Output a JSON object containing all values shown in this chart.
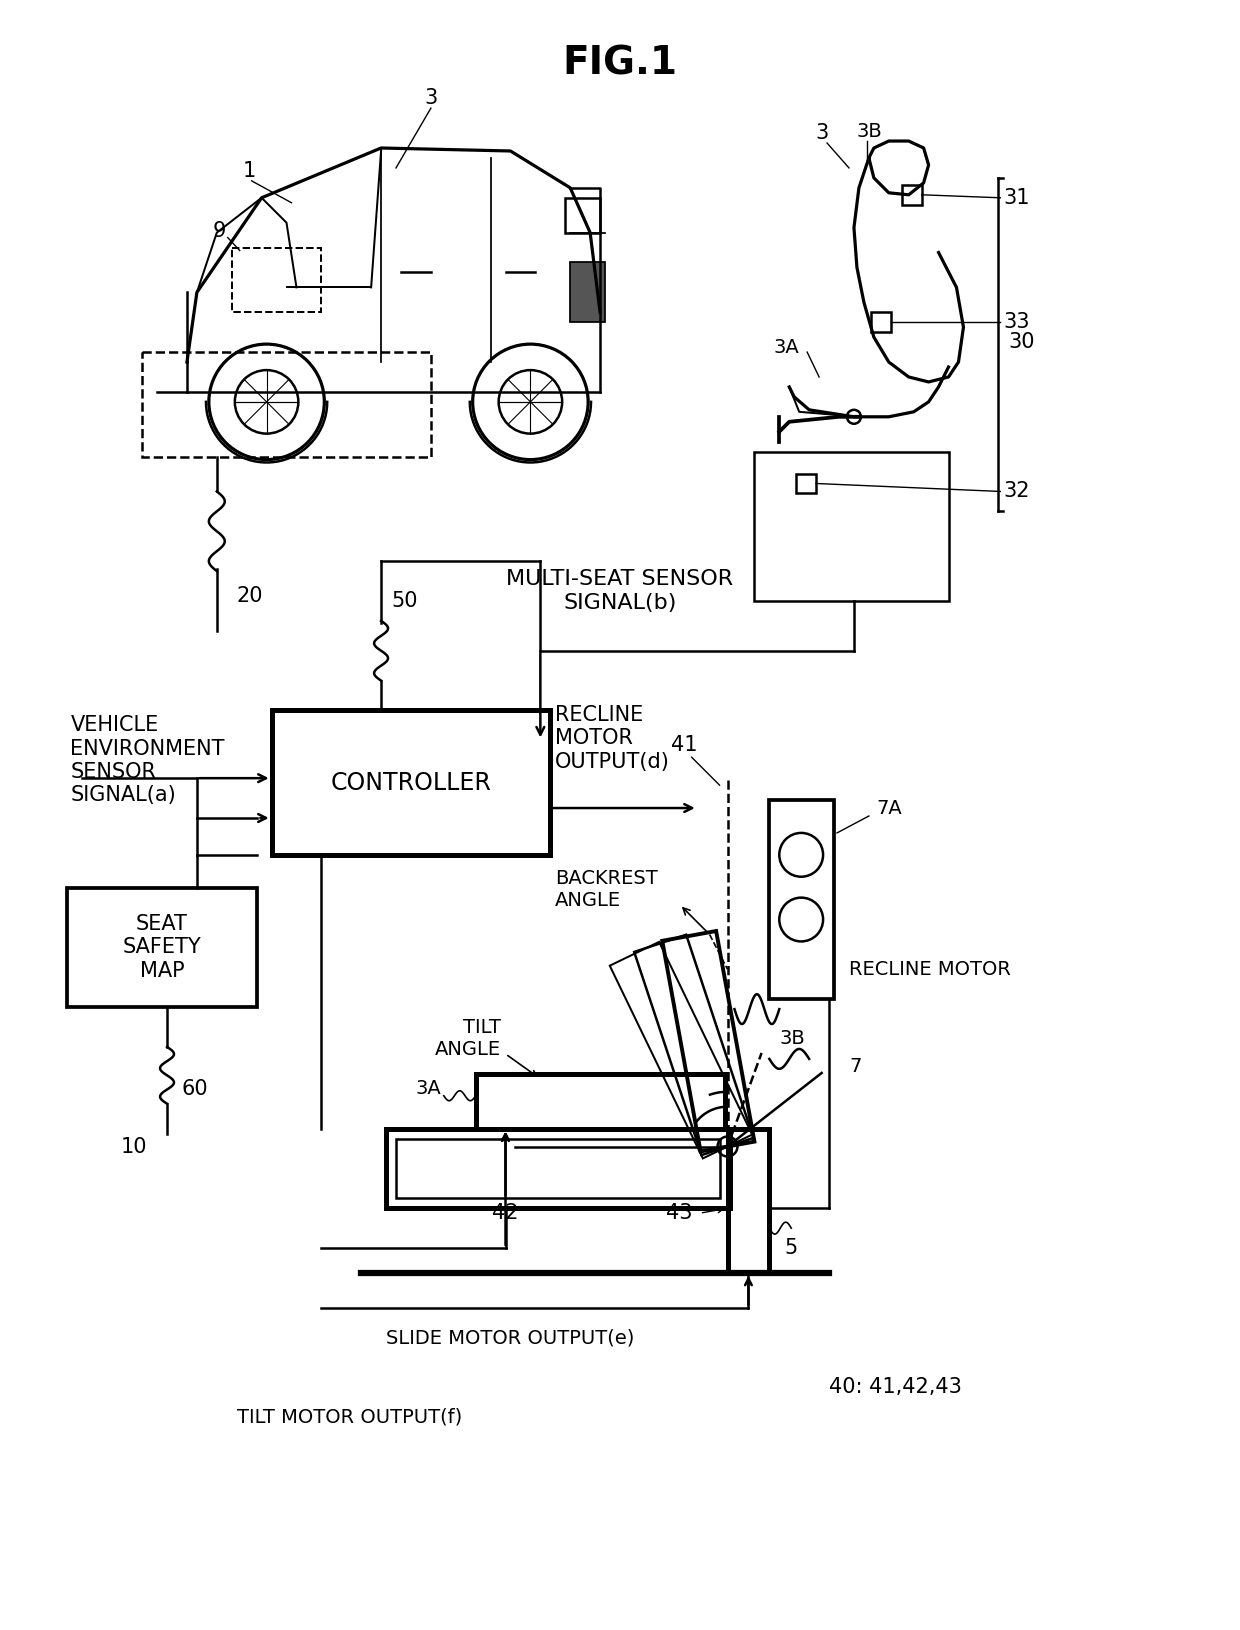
{
  "bg_color": "#ffffff",
  "line_color": "#000000",
  "fig_title": "FIG.1",
  "labels": {
    "1": "1",
    "3": "3",
    "9": "9",
    "20": "20",
    "30": "30",
    "31": "31",
    "32": "32",
    "33": "33",
    "3A_top": "3A",
    "3B_top": "3B",
    "50": "50",
    "41": "41",
    "42": "42",
    "43": "43",
    "60": "60",
    "10": "10",
    "5": "5",
    "7": "7",
    "7A": "7A",
    "3B_bot": "3B",
    "3A_bot": "3A",
    "vehicle_env": "VEHICLE\nENVIRONMENT\nSENSOR\nSIGNAL(a)",
    "multi_seat": "MULTI-SEAT SENSOR\nSIGNAL(b)",
    "controller": "CONTROLLER",
    "seat_safety": "SEAT\nSAFETY\nMAP",
    "recline_output": "RECLINE\nMOTOR\nOUTPUT(d)",
    "backrest_angle": "BACKREST\nANGLE",
    "tilt_angle": "TILT\nANGLE",
    "slide_output": "SLIDE MOTOR OUTPUT(e)",
    "tilt_output": "TILT MOTOR OUTPUT(f)",
    "recline_motor": "RECLINE MOTOR",
    "ref_40": "40: 41,42,43"
  }
}
